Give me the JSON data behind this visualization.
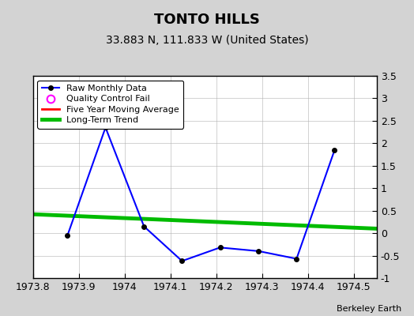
{
  "title": "TONTO HILLS",
  "subtitle": "33.883 N, 111.833 W (United States)",
  "credit": "Berkeley Earth",
  "xlim": [
    1973.8,
    1974.55
  ],
  "ylim": [
    -1.0,
    3.5
  ],
  "yticks": [
    -1.0,
    -0.5,
    0.0,
    0.5,
    1.0,
    1.5,
    2.0,
    2.5,
    3.0,
    3.5
  ],
  "ytick_labels": [
    "-1",
    "-0.5",
    "0",
    "0.5",
    "1",
    "1.5",
    "2",
    "2.5",
    "3",
    "3.5"
  ],
  "xticks": [
    1973.8,
    1973.9,
    1974.0,
    1974.1,
    1974.2,
    1974.3,
    1974.4,
    1974.5
  ],
  "xtick_labels": [
    "1973.8",
    "1973.9",
    "1974",
    "1974.1",
    "1974.2",
    "1974.3",
    "1974.4",
    "1974.5"
  ],
  "raw_x": [
    1973.875,
    1973.958,
    1974.042,
    1974.125,
    1974.208,
    1974.292,
    1974.375,
    1974.458
  ],
  "raw_y": [
    -0.05,
    2.35,
    0.15,
    -0.62,
    -0.32,
    -0.4,
    -0.57,
    1.85
  ],
  "trend_x": [
    1973.8,
    1974.55
  ],
  "trend_y": [
    0.42,
    0.1
  ],
  "raw_color": "#0000ff",
  "raw_marker_color": "#000000",
  "raw_linewidth": 1.5,
  "trend_color": "#00bb00",
  "trend_linewidth": 3.5,
  "mavg_color": "#ff0000",
  "bg_color": "#d3d3d3",
  "plot_bg_color": "#ffffff",
  "grid_color": "#b0b0b0",
  "legend_labels": [
    "Raw Monthly Data",
    "Quality Control Fail",
    "Five Year Moving Average",
    "Long-Term Trend"
  ],
  "title_fontsize": 13,
  "subtitle_fontsize": 10,
  "tick_fontsize": 9,
  "ylabel_fontsize": 9
}
